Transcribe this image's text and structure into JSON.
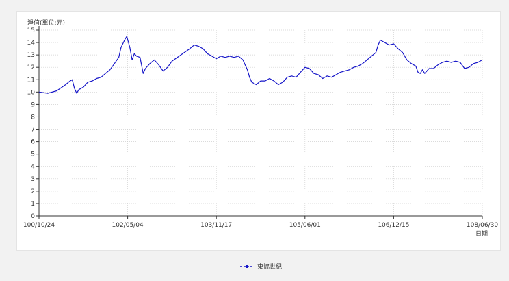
{
  "chart_data": {
    "type": "line",
    "ylabel": "淨值(單位:元)",
    "xlabel": "日期",
    "ylim": [
      0,
      15
    ],
    "yticks": [
      0,
      1,
      2,
      3,
      4,
      5,
      6,
      7,
      8,
      9,
      10,
      11,
      12,
      13,
      14,
      15
    ],
    "x_tick_labels": [
      "100/10/24",
      "102/05/04",
      "103/11/17",
      "105/06/01",
      "106/12/15",
      "108/06/30"
    ],
    "grid": true,
    "legend_position": "bottom",
    "series": [
      {
        "name": "東協世紀",
        "color": "#1515c8",
        "points": [
          [
            0.0,
            10.0
          ],
          [
            0.02,
            9.9
          ],
          [
            0.04,
            10.1
          ],
          [
            0.06,
            10.6
          ],
          [
            0.07,
            10.9
          ],
          [
            0.075,
            11.0
          ],
          [
            0.08,
            10.3
          ],
          [
            0.085,
            9.9
          ],
          [
            0.09,
            10.2
          ],
          [
            0.1,
            10.4
          ],
          [
            0.11,
            10.8
          ],
          [
            0.12,
            10.9
          ],
          [
            0.13,
            11.1
          ],
          [
            0.14,
            11.2
          ],
          [
            0.15,
            11.5
          ],
          [
            0.16,
            11.8
          ],
          [
            0.17,
            12.3
          ],
          [
            0.18,
            12.8
          ],
          [
            0.185,
            13.6
          ],
          [
            0.193,
            14.2
          ],
          [
            0.198,
            14.5
          ],
          [
            0.205,
            13.6
          ],
          [
            0.21,
            12.6
          ],
          [
            0.215,
            13.1
          ],
          [
            0.22,
            12.9
          ],
          [
            0.228,
            12.8
          ],
          [
            0.235,
            11.5
          ],
          [
            0.24,
            11.9
          ],
          [
            0.25,
            12.3
          ],
          [
            0.26,
            12.6
          ],
          [
            0.27,
            12.2
          ],
          [
            0.28,
            11.7
          ],
          [
            0.29,
            12.0
          ],
          [
            0.3,
            12.5
          ],
          [
            0.32,
            13.0
          ],
          [
            0.34,
            13.5
          ],
          [
            0.35,
            13.8
          ],
          [
            0.36,
            13.7
          ],
          [
            0.37,
            13.5
          ],
          [
            0.38,
            13.1
          ],
          [
            0.39,
            12.9
          ],
          [
            0.4,
            12.7
          ],
          [
            0.41,
            12.9
          ],
          [
            0.42,
            12.8
          ],
          [
            0.43,
            12.9
          ],
          [
            0.44,
            12.8
          ],
          [
            0.45,
            12.9
          ],
          [
            0.46,
            12.6
          ],
          [
            0.465,
            12.2
          ],
          [
            0.47,
            11.8
          ],
          [
            0.475,
            11.2
          ],
          [
            0.48,
            10.8
          ],
          [
            0.49,
            10.6
          ],
          [
            0.5,
            10.9
          ],
          [
            0.51,
            10.9
          ],
          [
            0.52,
            11.1
          ],
          [
            0.53,
            10.9
          ],
          [
            0.54,
            10.6
          ],
          [
            0.55,
            10.8
          ],
          [
            0.56,
            11.2
          ],
          [
            0.57,
            11.3
          ],
          [
            0.58,
            11.2
          ],
          [
            0.59,
            11.6
          ],
          [
            0.6,
            12.0
          ],
          [
            0.61,
            11.9
          ],
          [
            0.62,
            11.5
          ],
          [
            0.63,
            11.4
          ],
          [
            0.64,
            11.1
          ],
          [
            0.65,
            11.3
          ],
          [
            0.66,
            11.2
          ],
          [
            0.67,
            11.4
          ],
          [
            0.68,
            11.6
          ],
          [
            0.69,
            11.7
          ],
          [
            0.7,
            11.8
          ],
          [
            0.71,
            12.0
          ],
          [
            0.72,
            12.1
          ],
          [
            0.73,
            12.3
          ],
          [
            0.74,
            12.6
          ],
          [
            0.75,
            12.9
          ],
          [
            0.76,
            13.2
          ],
          [
            0.765,
            13.8
          ],
          [
            0.77,
            14.2
          ],
          [
            0.78,
            14.0
          ],
          [
            0.79,
            13.8
          ],
          [
            0.8,
            13.9
          ],
          [
            0.81,
            13.5
          ],
          [
            0.82,
            13.2
          ],
          [
            0.83,
            12.6
          ],
          [
            0.84,
            12.3
          ],
          [
            0.85,
            12.1
          ],
          [
            0.855,
            11.6
          ],
          [
            0.86,
            11.5
          ],
          [
            0.865,
            11.8
          ],
          [
            0.87,
            11.5
          ],
          [
            0.88,
            11.9
          ],
          [
            0.89,
            11.9
          ],
          [
            0.9,
            12.2
          ],
          [
            0.91,
            12.4
          ],
          [
            0.92,
            12.5
          ],
          [
            0.93,
            12.4
          ],
          [
            0.94,
            12.5
          ],
          [
            0.95,
            12.4
          ],
          [
            0.96,
            11.9
          ],
          [
            0.97,
            12.0
          ],
          [
            0.98,
            12.3
          ],
          [
            0.99,
            12.4
          ],
          [
            1.0,
            12.6
          ]
        ]
      }
    ]
  }
}
